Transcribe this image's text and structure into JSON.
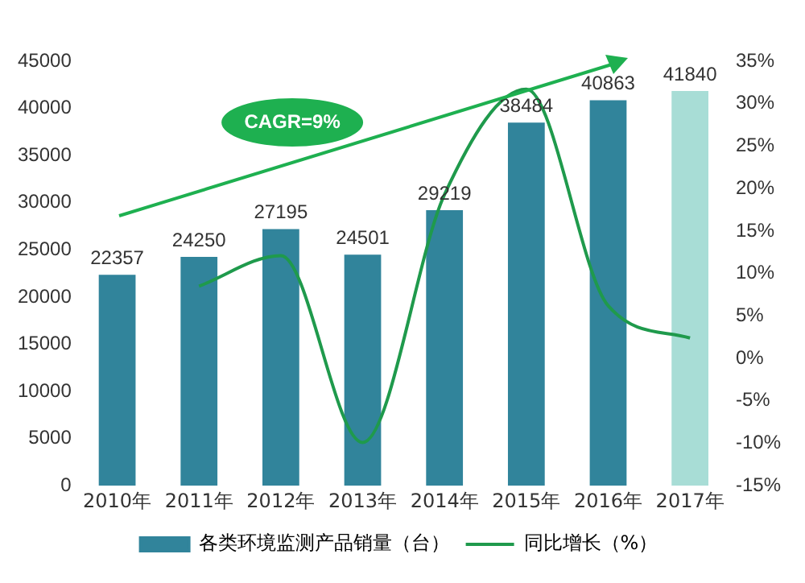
{
  "chart_data": {
    "type": "bar",
    "categories": [
      "2010年",
      "2011年",
      "2012年",
      "2013年",
      "2014年",
      "2015年",
      "2016年",
      "2017年"
    ],
    "series": [
      {
        "name": "各类环境监测产品销量（台）",
        "colors": [
          "#31849b",
          "#31849b",
          "#31849b",
          "#31849b",
          "#31849b",
          "#31849b",
          "#31849b",
          "#a8ddd6"
        ],
        "values": [
          22357,
          24250,
          27195,
          24501,
          29219,
          38484,
          40863,
          41840
        ],
        "value_labels": [
          "22357",
          "24250",
          "27195",
          "24501",
          "29219",
          "38484",
          "40863",
          "41840"
        ]
      },
      {
        "name": "同比增长（%）",
        "type": "line",
        "axis": "y2",
        "color": "#1f9a4c",
        "values": [
          null,
          8.5,
          12.1,
          -9.9,
          19.3,
          31.7,
          6.2,
          2.4
        ]
      }
    ],
    "ylim": [
      0,
      45000
    ],
    "yticks": [
      0,
      5000,
      10000,
      15000,
      20000,
      25000,
      30000,
      35000,
      40000,
      45000
    ],
    "y2lim": [
      -15,
      35
    ],
    "y2ticks": [
      {
        "value": -15,
        "label": "-15%"
      },
      {
        "value": -10,
        "label": "-10%"
      },
      {
        "value": -5,
        "label": "-5%"
      },
      {
        "value": 0,
        "label": "0%"
      },
      {
        "value": 5,
        "label": "5%"
      },
      {
        "value": 10,
        "label": "10%"
      },
      {
        "value": 15,
        "label": "15%"
      },
      {
        "value": 20,
        "label": "20%"
      },
      {
        "value": 25,
        "label": "25%"
      },
      {
        "value": 30,
        "label": "30%"
      },
      {
        "value": 35,
        "label": "35%"
      }
    ],
    "annotations": [
      "CAGR=9%"
    ],
    "grid": false,
    "legend": "bottom",
    "marker": "none"
  }
}
